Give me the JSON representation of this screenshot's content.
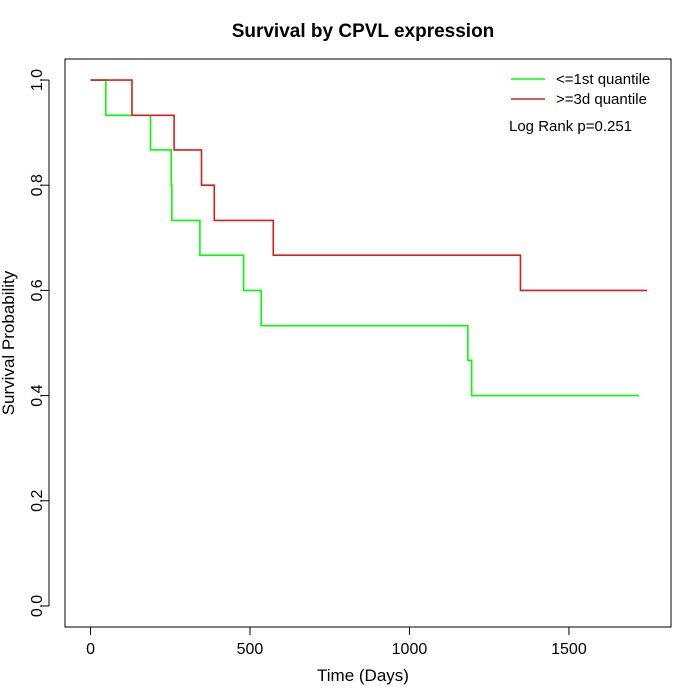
{
  "chart_data": {
    "type": "line",
    "title": "Survival by CPVL expression",
    "xlabel": "Time (Days)",
    "ylabel": "Survival Probability",
    "xlim": [
      -80,
      1820
    ],
    "ylim": [
      -0.04,
      1.04
    ],
    "xticks": [
      0,
      500,
      1000,
      1500
    ],
    "xtick_labels": [
      "0",
      "500",
      "1000",
      "1500"
    ],
    "yticks": [
      0.0,
      0.2,
      0.4,
      0.6,
      0.8,
      1.0
    ],
    "ytick_labels": [
      "0.0",
      "0.2",
      "0.4",
      "0.6",
      "0.8",
      "1.0"
    ],
    "grid": false,
    "legend_position": "top-right",
    "annotation": "Log Rank p=0.251",
    "series": [
      {
        "name": "<=1st quantile",
        "color": "#00ff00",
        "step": true,
        "x": [
          0,
          48,
          188,
          253,
          255,
          343,
          480,
          535,
          1183,
          1195,
          1720
        ],
        "y": [
          1.0,
          0.933,
          0.867,
          0.8,
          0.733,
          0.667,
          0.6,
          0.533,
          0.467,
          0.4,
          0.4
        ]
      },
      {
        "name": ">=3d quantile",
        "color": "#dd1c1c",
        "step": true,
        "x": [
          0,
          130,
          262,
          348,
          388,
          573,
          1348,
          1745
        ],
        "y": [
          1.0,
          0.933,
          0.867,
          0.8,
          0.733,
          0.667,
          0.6,
          0.6
        ]
      }
    ]
  }
}
